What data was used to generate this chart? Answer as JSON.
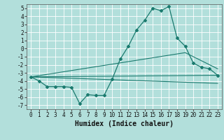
{
  "xlabel": "Humidex (Indice chaleur)",
  "xlim": [
    -0.5,
    23.5
  ],
  "ylim": [
    -7.5,
    5.5
  ],
  "xticks": [
    0,
    1,
    2,
    3,
    4,
    5,
    6,
    7,
    8,
    9,
    10,
    11,
    12,
    13,
    14,
    15,
    16,
    17,
    18,
    19,
    20,
    21,
    22,
    23
  ],
  "yticks": [
    -7,
    -6,
    -5,
    -4,
    -3,
    -2,
    -1,
    0,
    1,
    2,
    3,
    4,
    5
  ],
  "background_color": "#b2dfdb",
  "grid_color": "#ffffff",
  "line_color": "#1a7a6e",
  "line1_x": [
    0,
    1,
    2,
    3,
    4,
    5,
    6,
    7,
    8,
    9,
    10,
    11,
    12,
    13,
    14,
    15,
    16,
    17,
    18,
    19,
    20,
    21,
    22,
    23
  ],
  "line1_y": [
    -3.5,
    -4.0,
    -4.7,
    -4.7,
    -4.7,
    -4.8,
    -6.8,
    -5.7,
    -5.8,
    -5.8,
    -3.8,
    -1.3,
    0.3,
    2.3,
    3.5,
    5.0,
    4.7,
    5.2,
    1.3,
    0.3,
    -1.8,
    -2.3,
    -2.5,
    -3.3
  ],
  "line2_x": [
    0,
    23
  ],
  "line2_y": [
    -3.5,
    -3.3
  ],
  "line3_x": [
    0,
    23
  ],
  "line3_y": [
    -3.5,
    -4.3
  ],
  "line4_x": [
    0,
    19,
    23
  ],
  "line4_y": [
    -3.5,
    -0.5,
    -2.5
  ],
  "tick_fontsize": 5.5,
  "label_fontsize": 7
}
